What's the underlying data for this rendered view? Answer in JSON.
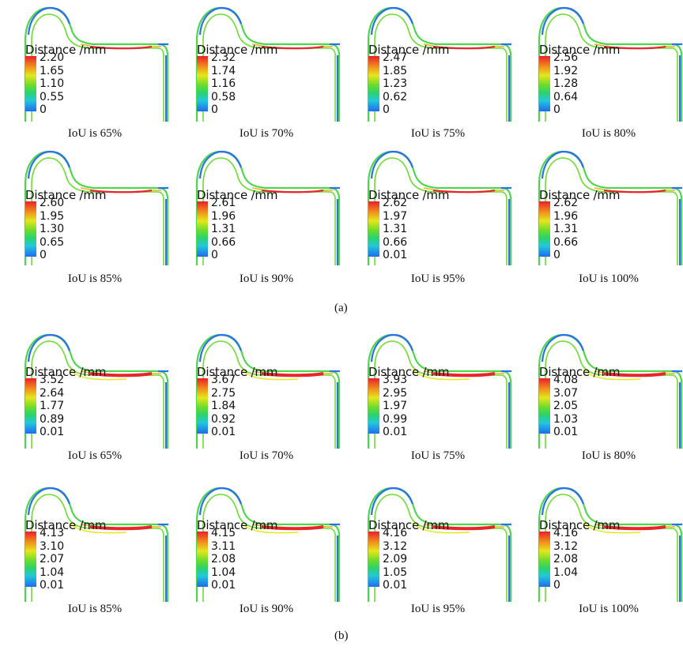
{
  "legend_title": "Distance /mm",
  "colors": {
    "high": "#e8202a",
    "mid": "#6fdc2a",
    "low": "#1f6cf0"
  },
  "sections": [
    {
      "label": "(a)",
      "panels": [
        {
          "caption": "IoU is 65%",
          "ticks": [
            "2.20",
            "1.65",
            "1.10",
            "0.55",
            "0"
          ]
        },
        {
          "caption": "IoU is 70%",
          "ticks": [
            "2.32",
            "1.74",
            "1.16",
            "0.58",
            "0"
          ]
        },
        {
          "caption": "IoU is 75%",
          "ticks": [
            "2.47",
            "1.85",
            "1.23",
            "0.62",
            "0"
          ]
        },
        {
          "caption": "IoU is 80%",
          "ticks": [
            "2.56",
            "1.92",
            "1.28",
            "0.64",
            "0"
          ]
        },
        {
          "caption": "IoU is 85%",
          "ticks": [
            "2.60",
            "1.95",
            "1.30",
            "0.65",
            "0"
          ]
        },
        {
          "caption": "IoU is 90%",
          "ticks": [
            "2.61",
            "1.96",
            "1.31",
            "0.66",
            "0"
          ]
        },
        {
          "caption": "IoU is 95%",
          "ticks": [
            "2.62",
            "1.97",
            "1.31",
            "0.66",
            "0.01"
          ]
        },
        {
          "caption": "IoU is 100%",
          "ticks": [
            "2.62",
            "1.96",
            "1.31",
            "0.66",
            "0"
          ]
        }
      ]
    },
    {
      "label": "(b)",
      "panels": [
        {
          "caption": "IoU is 65%",
          "ticks": [
            "3.52",
            "2.64",
            "1.77",
            "0.89",
            "0.01"
          ]
        },
        {
          "caption": "IoU is 70%",
          "ticks": [
            "3.67",
            "2.75",
            "1.84",
            "0.92",
            "0.01"
          ]
        },
        {
          "caption": "IoU is 75%",
          "ticks": [
            "3.93",
            "2.95",
            "1.97",
            "0.99",
            "0.01"
          ]
        },
        {
          "caption": "IoU is 80%",
          "ticks": [
            "4.08",
            "3.07",
            "2.05",
            "1.03",
            "0.01"
          ]
        },
        {
          "caption": "IoU is 85%",
          "ticks": [
            "4.13",
            "3.10",
            "2.07",
            "1.04",
            "0.01"
          ]
        },
        {
          "caption": "IoU is 90%",
          "ticks": [
            "4.15",
            "3.11",
            "2.08",
            "1.04",
            "0.01"
          ]
        },
        {
          "caption": "IoU is 95%",
          "ticks": [
            "4.16",
            "3.12",
            "2.09",
            "1.05",
            "0.01"
          ]
        },
        {
          "caption": "IoU is 100%",
          "ticks": [
            "4.16",
            "3.12",
            "2.08",
            "1.04",
            "0"
          ]
        }
      ]
    }
  ]
}
